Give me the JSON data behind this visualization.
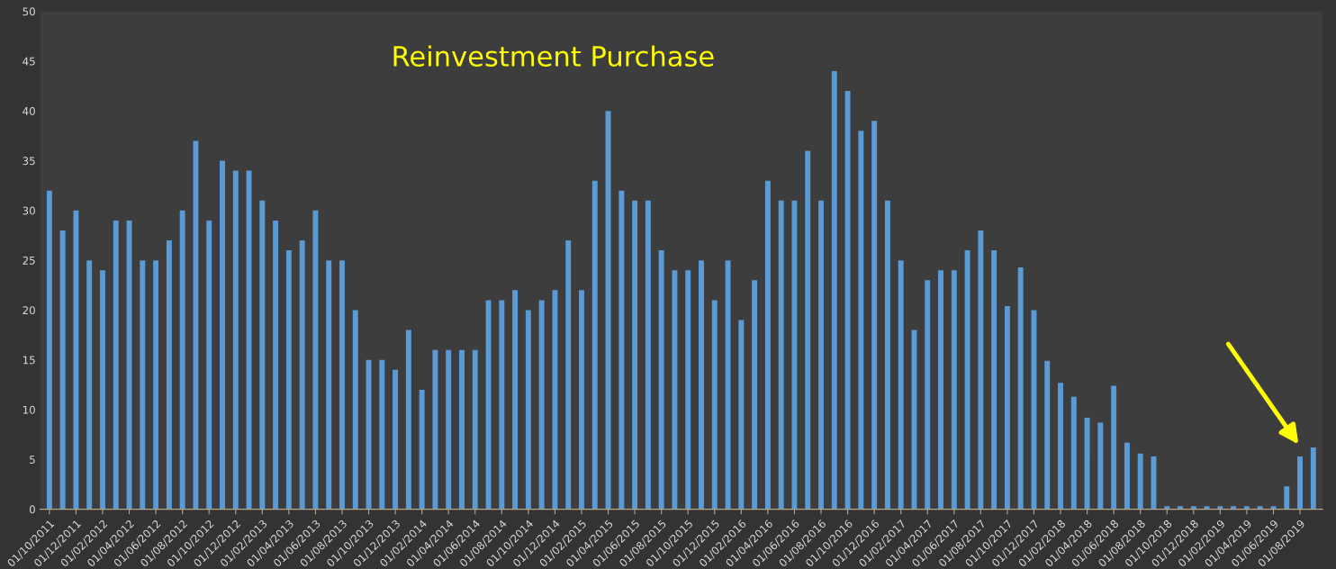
{
  "chart_data": {
    "type": "bar",
    "title": "Reinvestment Purchase",
    "categories": [
      "01/10/2011",
      null,
      "01/12/2011",
      null,
      "01/02/2012",
      null,
      "01/04/2012",
      null,
      "01/06/2012",
      null,
      "01/08/2012",
      null,
      "01/10/2012",
      null,
      "01/12/2012",
      null,
      "01/02/2013",
      null,
      "01/04/2013",
      null,
      "01/06/2013",
      null,
      "01/08/2013",
      null,
      "01/10/2013",
      null,
      "01/12/2013",
      null,
      "01/02/2014",
      null,
      "01/04/2014",
      null,
      "01/06/2014",
      null,
      "01/08/2014",
      null,
      "01/10/2014",
      null,
      "01/12/2014",
      null,
      "01/02/2015",
      null,
      "01/04/2015",
      null,
      "01/06/2015",
      null,
      "01/08/2015",
      null,
      "01/10/2015",
      null,
      "01/12/2015",
      null,
      "01/02/2016",
      null,
      "01/04/2016",
      null,
      "01/06/2016",
      null,
      "01/08/2016",
      null,
      "01/10/2016",
      null,
      "01/12/2016",
      null,
      "01/02/2017",
      null,
      "01/04/2017",
      null,
      "01/06/2017",
      null,
      "01/08/2017",
      null,
      "01/10/2017",
      null,
      "01/12/2017",
      null,
      "01/02/2018",
      null,
      "01/04/2018",
      null,
      "01/06/2018",
      null,
      "01/08/2018",
      null,
      "01/10/2018",
      null,
      "01/12/2018",
      null,
      "01/02/2019",
      null,
      "01/04/2019",
      null,
      "01/06/2019",
      null,
      "01/08/2019",
      null
    ],
    "values": [
      32,
      28,
      30,
      25,
      24,
      29,
      29,
      25,
      25,
      27,
      30,
      37,
      29,
      35,
      34,
      34,
      31,
      29,
      26,
      27,
      30,
      25,
      25,
      20,
      15,
      15,
      14,
      18,
      12,
      16,
      16,
      16,
      16,
      21,
      21,
      22,
      20,
      21,
      22,
      27,
      22,
      33,
      40,
      32,
      31,
      31,
      26,
      24,
      24,
      25,
      21,
      25,
      19,
      23,
      33,
      31,
      31,
      36,
      31,
      44,
      42,
      38,
      39,
      31,
      25,
      18,
      23,
      24,
      24,
      26,
      28,
      26,
      20.4,
      24.3,
      20,
      14.9,
      12.7,
      11.3,
      9.2,
      8.7,
      12.4,
      6.7,
      5.6,
      5.3,
      0.3,
      0.3,
      0.3,
      0.3,
      0.3,
      0.3,
      0.3,
      0.3,
      0.3,
      2.3,
      5.3,
      6.2
    ],
    "color": "#5b9bd5",
    "ylim": [
      0,
      50
    ],
    "yticks": [
      0,
      5,
      10,
      15,
      20,
      25,
      30,
      35,
      40,
      45,
      50
    ],
    "grid": false,
    "legend": false
  }
}
